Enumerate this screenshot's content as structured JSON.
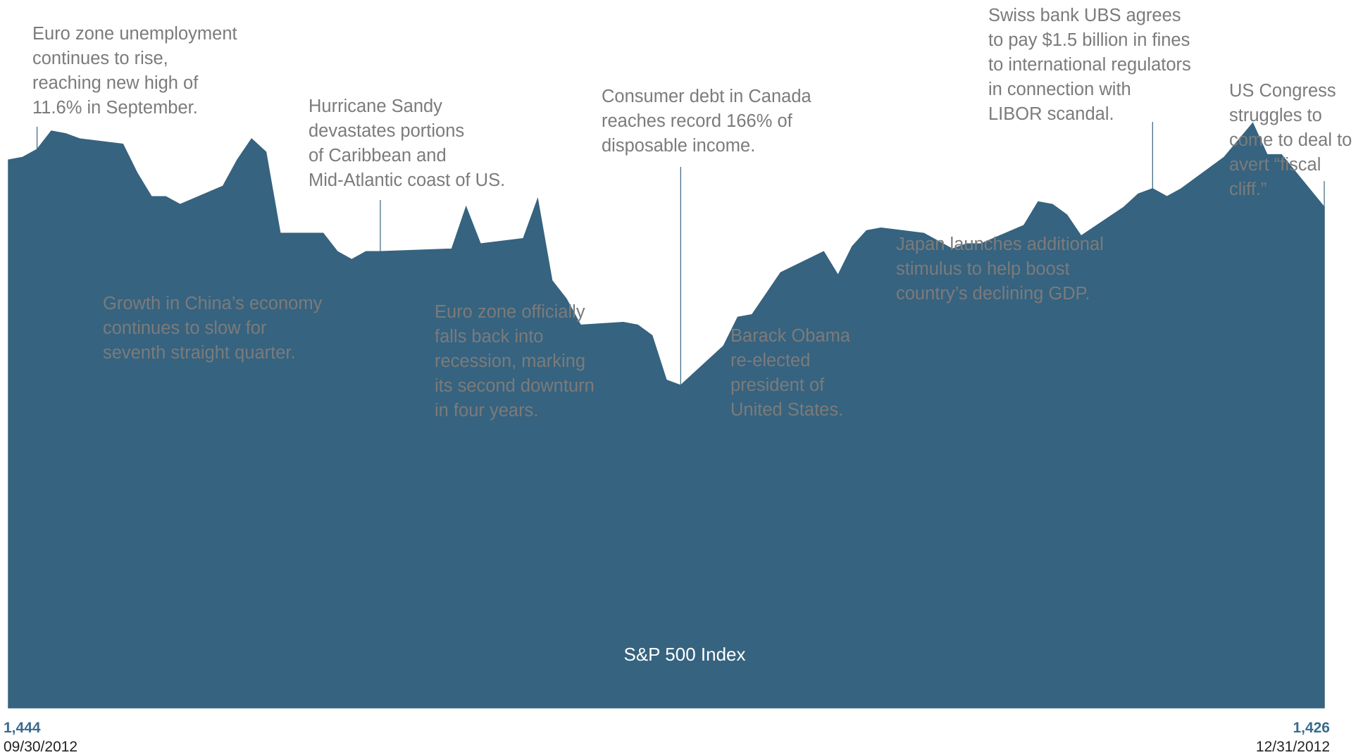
{
  "chart_data": {
    "type": "area",
    "series": [
      {
        "name": "S&P 500 Index",
        "x": [
          "2012-09-30",
          "2012-10-01",
          "2012-10-02",
          "2012-10-03",
          "2012-10-04",
          "2012-10-05",
          "2012-10-08",
          "2012-10-09",
          "2012-10-10",
          "2012-10-11",
          "2012-10-12",
          "2012-10-15",
          "2012-10-16",
          "2012-10-17",
          "2012-10-18",
          "2012-10-19",
          "2012-10-22",
          "2012-10-23",
          "2012-10-24",
          "2012-10-25",
          "2012-10-26",
          "2012-10-31",
          "2012-11-01",
          "2012-11-02",
          "2012-11-05",
          "2012-11-06",
          "2012-11-07",
          "2012-11-08",
          "2012-11-09",
          "2012-11-12",
          "2012-11-13",
          "2012-11-14",
          "2012-11-15",
          "2012-11-16",
          "2012-11-19",
          "2012-11-20",
          "2012-11-21",
          "2012-11-23",
          "2012-11-26",
          "2012-11-27",
          "2012-11-28",
          "2012-11-29",
          "2012-11-30",
          "2012-12-03",
          "2012-12-04",
          "2012-12-05",
          "2012-12-06",
          "2012-12-07",
          "2012-12-10",
          "2012-12-11",
          "2012-12-12",
          "2012-12-13",
          "2012-12-14",
          "2012-12-17",
          "2012-12-18",
          "2012-12-19",
          "2012-12-20",
          "2012-12-21",
          "2012-12-24",
          "2012-12-26",
          "2012-12-27",
          "2012-12-28",
          "2012-12-31"
        ],
        "values": [
          1444,
          1445,
          1448,
          1455,
          1454,
          1452,
          1450,
          1439,
          1430,
          1430,
          1427,
          1434,
          1444,
          1452,
          1447,
          1416,
          1416,
          1409,
          1406,
          1409,
          1409,
          1410,
          1426,
          1412,
          1414,
          1429,
          1398,
          1391,
          1381,
          1382,
          1381,
          1377,
          1360,
          1358,
          1373,
          1384,
          1385,
          1401,
          1409,
          1400,
          1411,
          1417,
          1418,
          1416,
          1413,
          1410,
          1412,
          1412,
          1419,
          1428,
          1427,
          1423,
          1415,
          1426,
          1431,
          1433,
          1430,
          1433,
          1445,
          1458,
          1446,
          1446,
          1426
        ]
      }
    ],
    "ylim": [
      1235,
      1505
    ],
    "x_start_label": "09/30/2012",
    "x_end_label": "12/31/2012",
    "start_value_label": "1,444",
    "end_value_label": "1,426",
    "series_label": "S&P 500 Index",
    "fill_color": "#36637f",
    "line_color": "#36637f",
    "annotation_text_color": "#7b7b7b",
    "value_label_color": "#3a6b8e",
    "annotations": [
      {
        "date": "2012-10-02",
        "lines": [
          "Euro zone unemployment",
          "continues to rise,",
          "reaching new high of",
          "11.6% in September."
        ]
      },
      {
        "date": "2012-10-12",
        "lines": [
          "Growth in China’s economy",
          "continues to slow for",
          "seventh straight quarter."
        ]
      },
      {
        "date": "2012-10-26",
        "lines": [
          "Hurricane Sandy",
          "devastates portions",
          "of Caribbean and",
          "Mid-Atlantic coast of US."
        ]
      },
      {
        "date": "2012-11-02",
        "lines": [
          "Euro zone officially",
          "falls back into",
          "recession, marking",
          "its second downturn",
          "in four years."
        ]
      },
      {
        "date": "2012-11-16",
        "lines": [
          "Consumer debt in Canada",
          "reaches record 166% of",
          "disposable income."
        ]
      },
      {
        "date": "2012-11-23",
        "lines": [
          "Barack Obama",
          "re-elected",
          "president of",
          "United States."
        ]
      },
      {
        "date": "2012-12-12",
        "lines": [
          "Japan launches additional",
          "stimulus to help boost",
          "country’s declining GDP."
        ]
      },
      {
        "date": "2012-12-19",
        "lines": [
          "Swiss bank UBS agrees",
          "to pay $1.5 billion in fines",
          "to international regulators",
          "in connection with",
          "LIBOR scandal."
        ]
      },
      {
        "date": "2012-12-31",
        "lines": [
          "US Congress",
          "struggles to",
          "come to deal to",
          "avert “fiscal",
          "cliff.”"
        ]
      }
    ]
  }
}
